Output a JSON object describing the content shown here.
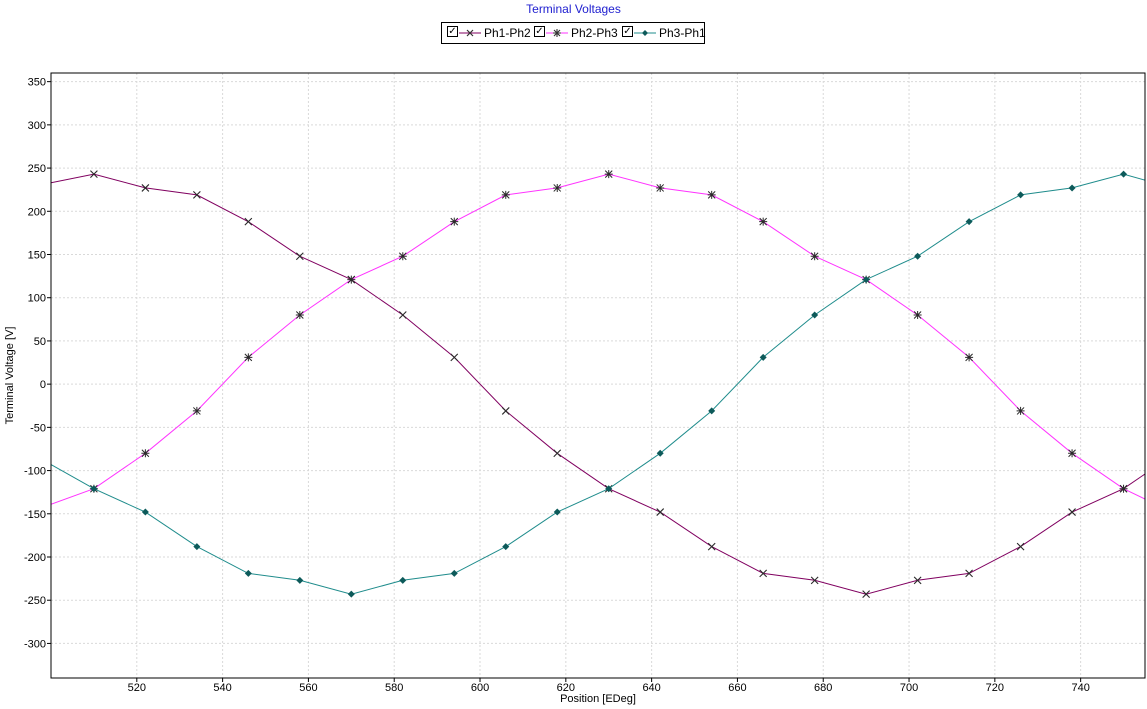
{
  "chart_data": {
    "type": "line",
    "title": "Terminal Voltages",
    "xlabel": "Position [EDeg]",
    "ylabel": "Terminal Voltage [V]",
    "xlim": [
      500,
      755
    ],
    "ylim": [
      -340,
      360
    ],
    "xticks": [
      520,
      540,
      560,
      580,
      600,
      620,
      640,
      660,
      680,
      700,
      720,
      740
    ],
    "yticks": [
      350,
      300,
      250,
      200,
      150,
      100,
      50,
      0,
      -50,
      -100,
      -150,
      -200,
      -250,
      -300
    ],
    "grid": true,
    "legend_position": "top-center",
    "series": [
      {
        "name": "Ph1-Ph2",
        "color": "#800060",
        "marker": "x",
        "x": [
          500,
          510,
          522,
          534,
          546,
          558,
          570,
          582,
          594,
          606,
          618,
          630,
          642,
          654,
          666,
          678,
          690,
          702,
          714,
          726,
          738,
          750,
          755
        ],
        "y": [
          233,
          243,
          227,
          219,
          188,
          148,
          121,
          80,
          31,
          -31,
          -80,
          -121,
          -148,
          -188,
          -219,
          -227,
          -243,
          -227,
          -219,
          -188,
          -148,
          -121,
          -104
        ]
      },
      {
        "name": "Ph2-Ph3",
        "color": "#ff33ff",
        "marker": "asterisk",
        "x": [
          500,
          510,
          522,
          534,
          546,
          558,
          570,
          582,
          594,
          606,
          618,
          630,
          642,
          654,
          666,
          678,
          690,
          702,
          714,
          726,
          738,
          750,
          755
        ],
        "y": [
          -139,
          -121,
          -80,
          -31,
          31,
          80,
          121,
          148,
          188,
          219,
          227,
          243,
          227,
          219,
          188,
          148,
          121,
          80,
          31,
          -31,
          -80,
          -121,
          -133
        ]
      },
      {
        "name": "Ph3-Ph1",
        "color": "#1f8c8c",
        "marker": "diamond",
        "x": [
          500,
          510,
          522,
          534,
          546,
          558,
          570,
          582,
          594,
          606,
          618,
          630,
          642,
          654,
          666,
          678,
          690,
          702,
          714,
          726,
          738,
          750,
          755
        ],
        "y": [
          -93,
          -121,
          -148,
          -188,
          -219,
          -227,
          -243,
          -227,
          -219,
          -188,
          -148,
          -121,
          -80,
          -31,
          31,
          80,
          121,
          148,
          188,
          219,
          227,
          243,
          236
        ]
      }
    ]
  }
}
